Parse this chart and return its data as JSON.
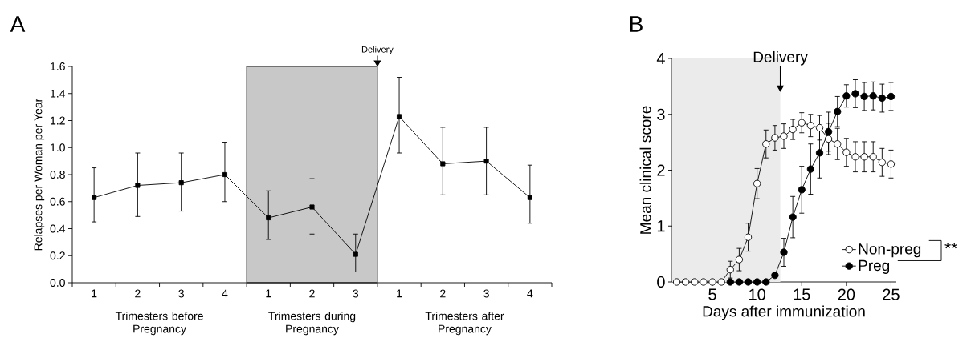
{
  "chart_data": [
    {
      "type": "line",
      "title": "A",
      "ylabel": "Relapses per Woman per Year",
      "categories": [
        "1",
        "2",
        "3",
        "4",
        "1",
        "2",
        "3",
        "1",
        "2",
        "3",
        "4"
      ],
      "series": [
        {
          "color": "#000000",
          "values": [
            0.63,
            0.72,
            0.74,
            0.8,
            0.48,
            0.56,
            0.21,
            1.23,
            0.88,
            0.9,
            0.63
          ],
          "errors": [
            [
              0.45,
              0.85
            ],
            [
              0.49,
              0.96
            ],
            [
              0.53,
              0.96
            ],
            [
              0.6,
              1.04
            ],
            [
              0.32,
              0.68
            ],
            [
              0.36,
              0.77
            ],
            [
              0.08,
              0.36
            ],
            [
              0.96,
              1.52
            ],
            [
              0.65,
              1.15
            ],
            [
              0.65,
              1.15
            ],
            [
              0.44,
              0.87
            ]
          ]
        }
      ],
      "ylim": [
        0,
        1.6
      ],
      "yticks": [
        {
          "value": 0,
          "label": "0.0"
        },
        0.2,
        0.4,
        0.6,
        0.8,
        {
          "value": 1,
          "label": "1.0"
        },
        1.2,
        1.4,
        1.6
      ],
      "annotations": [
        "Delivery",
        "Trimesters before Pregnancy",
        "Trimesters during Pregnancy",
        "Trimesters after Pregnancy"
      ],
      "marker": "square",
      "line_style": "solid",
      "grid": false,
      "legend": false
    },
    {
      "type": "line",
      "title": "B",
      "xlabel": "Days after immunization",
      "ylabel": "Mean clinical score",
      "series": [
        {
          "name": "Non-preg",
          "color": "#ffffff",
          "x": [
            1,
            2,
            3,
            4,
            5,
            6,
            7,
            8,
            9,
            10,
            11,
            12,
            13,
            14,
            15,
            16,
            17,
            18,
            19,
            20,
            21,
            22,
            23,
            24,
            25
          ],
          "values": [
            0,
            0,
            0,
            0,
            0,
            0,
            0.22,
            0.4,
            0.8,
            1.76,
            2.47,
            2.58,
            2.61,
            2.73,
            2.85,
            2.8,
            2.76,
            2.56,
            2.47,
            2.32,
            2.24,
            2.24,
            2.24,
            2.14,
            2.11
          ],
          "errors": [
            null,
            null,
            null,
            null,
            null,
            null,
            0.15,
            0.2,
            0.25,
            0.27,
            0.25,
            0.22,
            0.22,
            0.18,
            0.18,
            0.2,
            0.22,
            0.28,
            0.28,
            0.25,
            0.27,
            0.27,
            0.27,
            0.25,
            0.25
          ]
        },
        {
          "name": "Preg",
          "color": "#000000",
          "x": [
            7,
            8,
            9,
            10,
            11,
            12,
            13,
            14,
            15,
            16,
            17,
            18,
            19,
            20,
            21,
            22,
            23,
            24,
            25
          ],
          "values": [
            0,
            0,
            0,
            0,
            0,
            0.12,
            0.53,
            1.16,
            1.65,
            2.02,
            2.31,
            2.69,
            3.05,
            3.33,
            3.37,
            3.32,
            3.33,
            3.29,
            3.32
          ],
          "errors": [
            null,
            null,
            null,
            null,
            null,
            null,
            0.25,
            0.37,
            0.42,
            0.45,
            0.45,
            0.35,
            0.27,
            0.2,
            0.25,
            0.25,
            0.25,
            0.25,
            0.25
          ]
        }
      ],
      "xlim": [
        0.5,
        25.5
      ],
      "ylim": [
        0,
        4
      ],
      "xticks": [
        5,
        10,
        15,
        20,
        25
      ],
      "yticks": [
        0,
        1,
        2,
        3,
        4
      ],
      "bands": [
        {
          "axis": "x",
          "from": 0.5,
          "to": 12.6,
          "color": "#ebebeb"
        }
      ],
      "annotations": [
        {
          "text": "Delivery",
          "x": 12.6,
          "y": 3.4
        },
        "**"
      ],
      "marker": "circle",
      "line_style": "solid",
      "grid": false,
      "legend": "bottom right"
    }
  ]
}
